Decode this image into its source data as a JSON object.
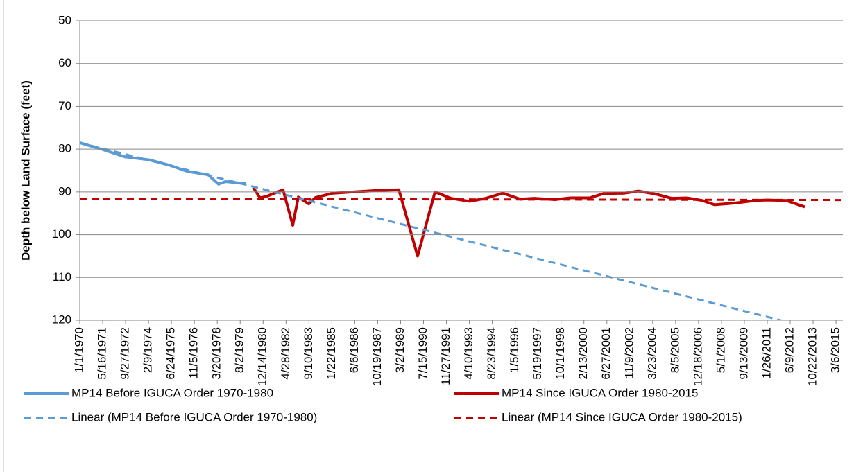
{
  "chart_data": {
    "type": "line",
    "y_label": "Depth below Land Surface (feet)",
    "ylim": [
      50,
      120
    ],
    "yticks": [
      50,
      60,
      70,
      80,
      90,
      100,
      110,
      120
    ],
    "y_reversed": true,
    "grid": true,
    "xlim": [
      0,
      16650
    ],
    "xticks": [
      {
        "value": 0,
        "label": "1/1/1970"
      },
      {
        "value": 500,
        "label": "5/16/1971"
      },
      {
        "value": 1000,
        "label": "9/27/1972"
      },
      {
        "value": 1500,
        "label": "2/9/1974"
      },
      {
        "value": 2000,
        "label": "6/24/1975"
      },
      {
        "value": 2500,
        "label": "11/5/1976"
      },
      {
        "value": 3000,
        "label": "3/20/1978"
      },
      {
        "value": 3500,
        "label": "8/2/1979"
      },
      {
        "value": 4000,
        "label": "12/14/1980"
      },
      {
        "value": 4500,
        "label": "4/28/1982"
      },
      {
        "value": 5000,
        "label": "9/10/1983"
      },
      {
        "value": 5500,
        "label": "1/22/1985"
      },
      {
        "value": 6000,
        "label": "6/6/1986"
      },
      {
        "value": 6500,
        "label": "10/19/1987"
      },
      {
        "value": 7000,
        "label": "3/2/1989"
      },
      {
        "value": 7500,
        "label": "7/15/1990"
      },
      {
        "value": 8000,
        "label": "11/27/1991"
      },
      {
        "value": 8500,
        "label": "4/10/1993"
      },
      {
        "value": 9000,
        "label": "8/23/1994"
      },
      {
        "value": 9500,
        "label": "1/5/1996"
      },
      {
        "value": 10000,
        "label": "5/19/1997"
      },
      {
        "value": 10500,
        "label": "10/1/1998"
      },
      {
        "value": 11000,
        "label": "2/13/2000"
      },
      {
        "value": 11500,
        "label": "6/27/2001"
      },
      {
        "value": 12000,
        "label": "11/9/2002"
      },
      {
        "value": 12500,
        "label": "3/23/2004"
      },
      {
        "value": 13000,
        "label": "8/5/2005"
      },
      {
        "value": 13500,
        "label": "12/18/2006"
      },
      {
        "value": 14000,
        "label": "5/1/2008"
      },
      {
        "value": 14500,
        "label": "9/13/2009"
      },
      {
        "value": 15000,
        "label": "1/26/2011"
      },
      {
        "value": 15500,
        "label": "6/9/2012"
      },
      {
        "value": 16000,
        "label": "10/22/2013"
      },
      {
        "value": 16500,
        "label": "3/6/2015"
      }
    ],
    "series": [
      {
        "name": "MP14 Before IGUCA Order 1970-1980",
        "color": "#5b9bd5",
        "dash": false,
        "x": [
          0,
          500,
          984,
          1514,
          1968,
          2347,
          2801,
          3028,
          3179,
          3633
        ],
        "values": [
          78.5,
          80.1,
          81.8,
          82.5,
          83.8,
          85.2,
          86,
          88.2,
          87.6,
          88.1
        ]
      },
      {
        "name": "MP14 Since IGUCA Order 1980-2015",
        "color": "#c00000",
        "dash": false,
        "x": [
          3784,
          3935,
          4087,
          4435,
          4647,
          4768,
          4995,
          5146,
          5525,
          5979,
          6433,
          6963,
          7371,
          7750,
          8098,
          8507,
          8855,
          9233,
          9611,
          9914,
          10368,
          10701,
          11125,
          11428,
          11882,
          12184,
          12563,
          12911,
          13244,
          13577,
          13849,
          14304,
          14758,
          14985,
          15409,
          15818
        ],
        "values": [
          89,
          91.4,
          91,
          89.5,
          97.8,
          91.2,
          92.8,
          91.3,
          90.3,
          90,
          89.7,
          89.5,
          105,
          90,
          91.5,
          92.2,
          91.5,
          90.3,
          91.7,
          91.5,
          91.8,
          91.4,
          91.4,
          90.4,
          90.3,
          89.8,
          90.5,
          91.5,
          91.4,
          92,
          93,
          92.6,
          92,
          91.9,
          92,
          93.5
        ]
      },
      {
        "name": "Linear (MP14 Before IGUCA Order 1970-1980)",
        "color": "#5b9bd5",
        "dash": true,
        "x": [
          0,
          16650
        ],
        "values": [
          78.5,
          123.7
        ]
      },
      {
        "name": "Linear (MP14 Since IGUCA Order 1980-2015)",
        "color": "#c00000",
        "dash": true,
        "x": [
          0,
          16650
        ],
        "values": [
          91.6,
          91.9
        ]
      }
    ]
  }
}
